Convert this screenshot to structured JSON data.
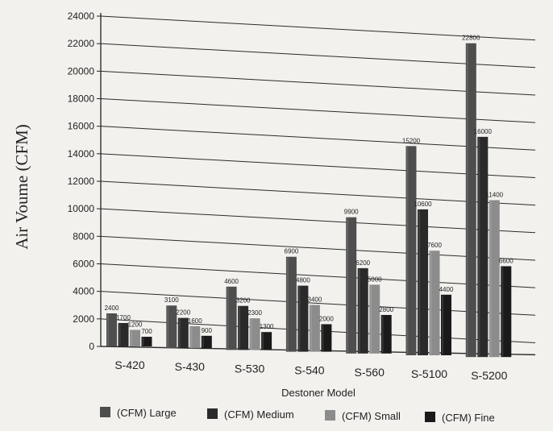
{
  "chart_data": {
    "type": "bar",
    "title": "",
    "xlabel": "Destoner Model",
    "ylabel": "Air Voume (CFM)",
    "categories": [
      "S-420",
      "S-430",
      "S-530",
      "S-540",
      "S-560",
      "S-5100",
      "S-5200"
    ],
    "series": [
      {
        "name": "(CFM) Large",
        "values": [
          2400,
          3100,
          4600,
          6900,
          9900,
          15200,
          22800
        ],
        "color": "#4e4e4e"
      },
      {
        "name": "(CFM) Medium",
        "values": [
          1700,
          2200,
          3200,
          4800,
          6200,
          10600,
          16000
        ],
        "color": "#2a2a2a"
      },
      {
        "name": "(CFM) Small",
        "values": [
          1200,
          1600,
          2300,
          3400,
          5000,
          7600,
          11400
        ],
        "color": "#8c8c8c"
      },
      {
        "name": "(CFM) Fine",
        "values": [
          700,
          900,
          1300,
          2000,
          2800,
          4400,
          6600
        ],
        "color": "#1a1a1a"
      }
    ],
    "ylim": [
      0,
      24000
    ],
    "yticks": [
      0,
      2000,
      4000,
      6000,
      8000,
      10000,
      12000,
      14000,
      16000,
      18000,
      20000,
      22000,
      24000
    ],
    "grid": true,
    "legend": "bottom"
  }
}
